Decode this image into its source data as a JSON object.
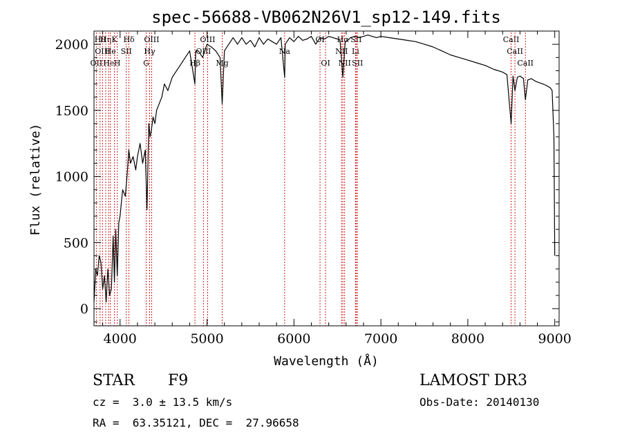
{
  "chart_data": {
    "type": "line",
    "title": "spec-56688-VB062N26V1_sp12-149.fits",
    "xlabel": "Wavelength (Å)",
    "ylabel": "Flux (relative)",
    "xlim": [
      3700,
      9050
    ],
    "ylim": [
      -130,
      2100
    ],
    "xticks": [
      4000,
      5000,
      6000,
      7000,
      8000,
      9000
    ],
    "yticks": [
      0,
      500,
      1000,
      1500,
      2000
    ],
    "x_tick_labels": [
      "4000",
      "5000",
      "6000",
      "7000",
      "8000",
      "9000"
    ],
    "y_tick_labels": [
      "0",
      "500",
      "1000",
      "1500",
      "2000"
    ],
    "grid": false,
    "line_color": "#000000",
    "marker_color": "#cc0000",
    "series": [
      {
        "x": [
          3700,
          3720,
          3740,
          3760,
          3780,
          3800,
          3820,
          3840,
          3860,
          3880,
          3900,
          3920,
          3935,
          3950,
          3968,
          3985,
          4000,
          4030,
          4060,
          4080,
          4101,
          4120,
          4150,
          4180,
          4200,
          4230,
          4260,
          4290,
          4310,
          4330,
          4345,
          4360,
          4380,
          4400,
          4420,
          4450,
          4480,
          4510,
          4550,
          4600,
          4650,
          4700,
          4750,
          4800,
          4861,
          4870,
          4900,
          4950,
          5000,
          5050,
          5100,
          5150,
          5175,
          5200,
          5250,
          5300,
          5350,
          5400,
          5450,
          5500,
          5550,
          5600,
          5650,
          5700,
          5750,
          5800,
          5850,
          5893,
          5900,
          5950,
          6000,
          6050,
          6100,
          6150,
          6200,
          6250,
          6300,
          6350,
          6400,
          6450,
          6500,
          6530,
          6563,
          6590,
          6620,
          6650,
          6700,
          6750,
          6800,
          6850,
          6900,
          6950,
          7000,
          7100,
          7200,
          7300,
          7400,
          7500,
          7600,
          7700,
          7800,
          7900,
          8000,
          8100,
          8200,
          8300,
          8400,
          8450,
          8498,
          8520,
          8542,
          8570,
          8600,
          8640,
          8662,
          8690,
          8730,
          8780,
          8820,
          8860,
          8900,
          8950,
          8970,
          8990,
          9000
        ],
        "y": [
          50,
          300,
          250,
          400,
          350,
          150,
          250,
          50,
          300,
          100,
          150,
          550,
          200,
          600,
          250,
          650,
          700,
          900,
          850,
          1000,
          1200,
          1100,
          1150,
          1050,
          1150,
          1250,
          1100,
          1200,
          750,
          1400,
          1300,
          1350,
          1450,
          1400,
          1500,
          1550,
          1600,
          1700,
          1650,
          1750,
          1800,
          1850,
          1900,
          1950,
          1700,
          1950,
          1950,
          1900,
          2000,
          1980,
          1950,
          1900,
          1550,
          1950,
          2000,
          2050,
          2000,
          2050,
          2000,
          2030,
          1980,
          2050,
          2000,
          2040,
          2020,
          2000,
          2050,
          1750,
          2000,
          2050,
          2020,
          2060,
          2030,
          2040,
          2060,
          2000,
          2050,
          2040,
          2060,
          2050,
          2040,
          2030,
          1750,
          2020,
          2030,
          2050,
          2060,
          2050,
          2060,
          2070,
          2060,
          2050,
          2060,
          2050,
          2040,
          2030,
          2020,
          2000,
          1980,
          1950,
          1920,
          1900,
          1880,
          1860,
          1840,
          1810,
          1790,
          1770,
          1400,
          1760,
          1650,
          1750,
          1760,
          1740,
          1580,
          1730,
          1740,
          1720,
          1710,
          1700,
          1690,
          1670,
          1650,
          1300,
          400
        ]
      }
    ],
    "line_markers": [
      {
        "wl": 3727,
        "row": 2,
        "label": "OII"
      },
      {
        "wl": 3770,
        "row": 0,
        "label": "Hθ"
      },
      {
        "wl": 3798,
        "row": 1,
        "label": "OIII"
      },
      {
        "wl": 3835,
        "row": 0,
        "label": "Hη"
      },
      {
        "wl": 3869,
        "row": 2,
        "label": "He"
      },
      {
        "wl": 3889,
        "row": 1,
        "label": "He"
      },
      {
        "wl": 3934,
        "row": 0,
        "label": "K"
      },
      {
        "wl": 3968,
        "row": 2,
        "label": "H"
      },
      {
        "wl": 4072,
        "row": 1,
        "label": "SII"
      },
      {
        "wl": 4102,
        "row": 0,
        "label": "Hδ"
      },
      {
        "wl": 4300,
        "row": 2,
        "label": "G"
      },
      {
        "wl": 4340,
        "row": 1,
        "label": "Hγ"
      },
      {
        "wl": 4363,
        "row": 0,
        "label": "OIII"
      },
      {
        "wl": 4861,
        "row": 2,
        "label": "Hβ"
      },
      {
        "wl": 4959,
        "row": 1,
        "label": "OIII"
      },
      {
        "wl": 5007,
        "row": 0,
        "label": "OIII"
      },
      {
        "wl": 5175,
        "row": 2,
        "label": "Mg"
      },
      {
        "wl": 5893,
        "row": 1,
        "label": "Na"
      },
      {
        "wl": 6300,
        "row": 0,
        "label": "OI"
      },
      {
        "wl": 6364,
        "row": 2,
        "label": "OI"
      },
      {
        "wl": 6548,
        "row": 1,
        "label": "NII"
      },
      {
        "wl": 6563,
        "row": 0,
        "label": "Hα"
      },
      {
        "wl": 6583,
        "row": 2,
        "label": "NII"
      },
      {
        "wl": 6708,
        "row": 1,
        "label": "Li"
      },
      {
        "wl": 6716,
        "row": 0,
        "label": "SII"
      },
      {
        "wl": 6731,
        "row": 2,
        "label": "SII"
      },
      {
        "wl": 8498,
        "row": 0,
        "label": "CaII"
      },
      {
        "wl": 8542,
        "row": 1,
        "label": "CaII"
      },
      {
        "wl": 8662,
        "row": 2,
        "label": "CaII"
      }
    ]
  },
  "info": {
    "object_class": "STAR",
    "subclass": "F9",
    "redshift": "cz =  3.0 ± 13.5 km/s",
    "coords": "RA =  63.35121, DEC =  27.96658",
    "survey": "LAMOST DR3",
    "obs_date": "Obs-Date: 20140130"
  }
}
